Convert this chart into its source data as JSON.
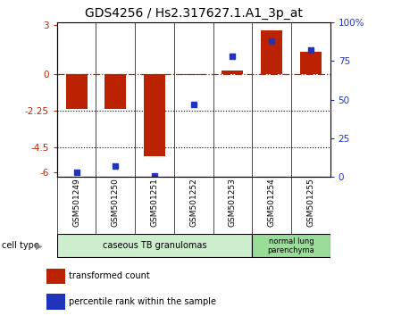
{
  "title": "GDS4256 / Hs2.317627.1.A1_3p_at",
  "samples": [
    "GSM501249",
    "GSM501250",
    "GSM501251",
    "GSM501252",
    "GSM501253",
    "GSM501254",
    "GSM501255"
  ],
  "red_values": [
    -2.1,
    -2.15,
    -5.0,
    -0.05,
    0.22,
    2.7,
    1.4
  ],
  "blue_values_pct": [
    3,
    7,
    1,
    47,
    78,
    88,
    82
  ],
  "ylim_left": [
    -6.3,
    3.2
  ],
  "ylim_right": [
    0,
    100
  ],
  "yticks_left": [
    3,
    0,
    -2.25,
    -4.5,
    -6
  ],
  "yticks_right": [
    100,
    75,
    50,
    25,
    0
  ],
  "ytick_labels_left": [
    "3",
    "0",
    "-2.25",
    "-4.5",
    "-6"
  ],
  "ytick_labels_right": [
    "100%",
    "75",
    "50",
    "25",
    "0"
  ],
  "dotted_lines": [
    -2.25,
    -4.5
  ],
  "group1_label": "caseous TB granulomas",
  "group2_label": "normal lung\nparenchyma",
  "group1_indices": [
    0,
    1,
    2,
    3,
    4
  ],
  "group2_indices": [
    5,
    6
  ],
  "cell_type_label": "cell type",
  "legend_red": "transformed count",
  "legend_blue": "percentile rank within the sample",
  "red_color": "#bb2200",
  "blue_color": "#2233bb",
  "group1_color": "#cceecc",
  "group2_color": "#99dd99",
  "bar_width": 0.55,
  "title_fontsize": 10,
  "tick_fontsize": 7.5,
  "label_fontsize": 7.5
}
